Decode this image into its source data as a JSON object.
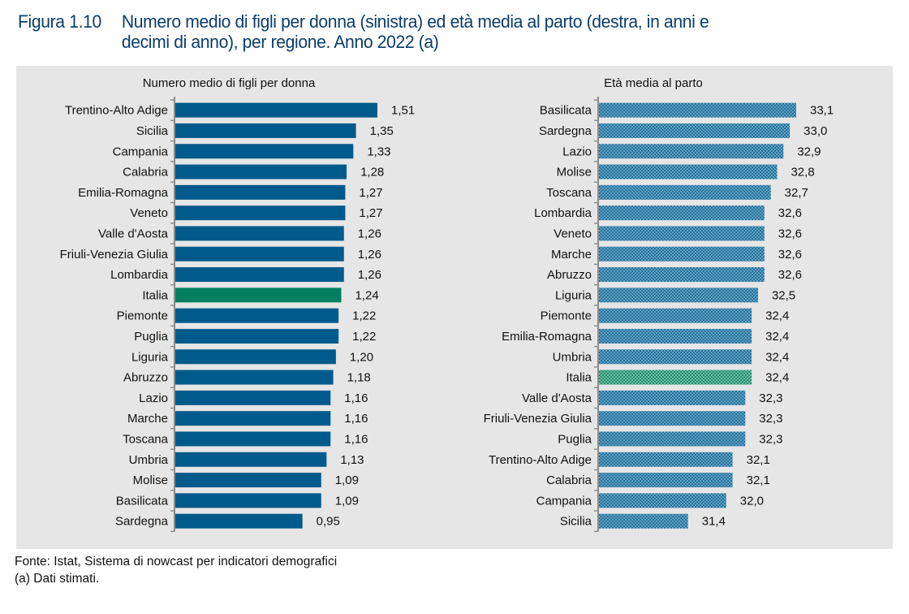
{
  "figure": {
    "number": "Figura 1.10",
    "title_line1": "Numero medio di figli per donna (sinistra) ed età media al parto (destra, in anni e",
    "title_line2": "decimi di anno), per regione. Anno 2022 (a)"
  },
  "footer": {
    "source": "Fonte: Istat, Sistema di nowcast per indicatori demografici",
    "note": "(a) Dati stimati."
  },
  "colors": {
    "bar": "#005a8c",
    "highlight": "#008060",
    "bar_pattern": "#2e7ea6",
    "highlight_pattern": "#2e9a7a"
  },
  "chart_data": [
    {
      "type": "bar",
      "orientation": "horizontal",
      "title": "Numero medio di figli per donna",
      "xlabel": "",
      "ylabel": "",
      "xlim": [
        0,
        1.6
      ],
      "highlight": "Italia",
      "categories": [
        "Trentino-Alto Adige",
        "Sicilia",
        "Campania",
        "Calabria",
        "Emilia-Romagna",
        "Veneto",
        "Valle d'Aosta",
        "Friuli-Venezia Giulia",
        "Lombardia",
        "Italia",
        "Piemonte",
        "Puglia",
        "Liguria",
        "Abruzzo",
        "Lazio",
        "Marche",
        "Toscana",
        "Umbria",
        "Molise",
        "Basilicata",
        "Sardegna"
      ],
      "values": [
        1.51,
        1.35,
        1.33,
        1.28,
        1.27,
        1.27,
        1.26,
        1.26,
        1.26,
        1.24,
        1.22,
        1.22,
        1.2,
        1.18,
        1.16,
        1.16,
        1.16,
        1.13,
        1.09,
        1.09,
        0.95
      ],
      "labels": [
        "1,51",
        "1,35",
        "1,33",
        "1,28",
        "1,27",
        "1,27",
        "1,26",
        "1,26",
        "1,26",
        "1,24",
        "1,22",
        "1,22",
        "1,20",
        "1,18",
        "1,16",
        "1,16",
        "1,16",
        "1,13",
        "1,09",
        "1,09",
        "0,95"
      ]
    },
    {
      "type": "bar",
      "orientation": "horizontal",
      "title": "Età media al parto",
      "xlabel": "",
      "ylabel": "",
      "xlim": [
        30.0,
        33.4
      ],
      "highlight": "Italia",
      "categories": [
        "Basilicata",
        "Sardegna",
        "Lazio",
        "Molise",
        "Toscana",
        "Lombardia",
        "Veneto",
        "Marche",
        "Abruzzo",
        "Liguria",
        "Piemonte",
        "Emilia-Romagna",
        "Umbria",
        "Italia",
        "Valle d'Aosta",
        "Friuli-Venezia Giulia",
        "Puglia",
        "Trentino-Alto Adige",
        "Calabria",
        "Campania",
        "Sicilia"
      ],
      "values": [
        33.1,
        33.0,
        32.9,
        32.8,
        32.7,
        32.6,
        32.6,
        32.6,
        32.6,
        32.5,
        32.4,
        32.4,
        32.4,
        32.4,
        32.3,
        32.3,
        32.3,
        32.1,
        32.1,
        32.0,
        31.4
      ],
      "labels": [
        "33,1",
        "33,0",
        "32,9",
        "32,8",
        "32,7",
        "32,6",
        "32,6",
        "32,6",
        "32,6",
        "32,5",
        "32,4",
        "32,4",
        "32,4",
        "32,4",
        "32,3",
        "32,3",
        "32,3",
        "32,1",
        "32,1",
        "32,0",
        "31,4"
      ]
    }
  ]
}
